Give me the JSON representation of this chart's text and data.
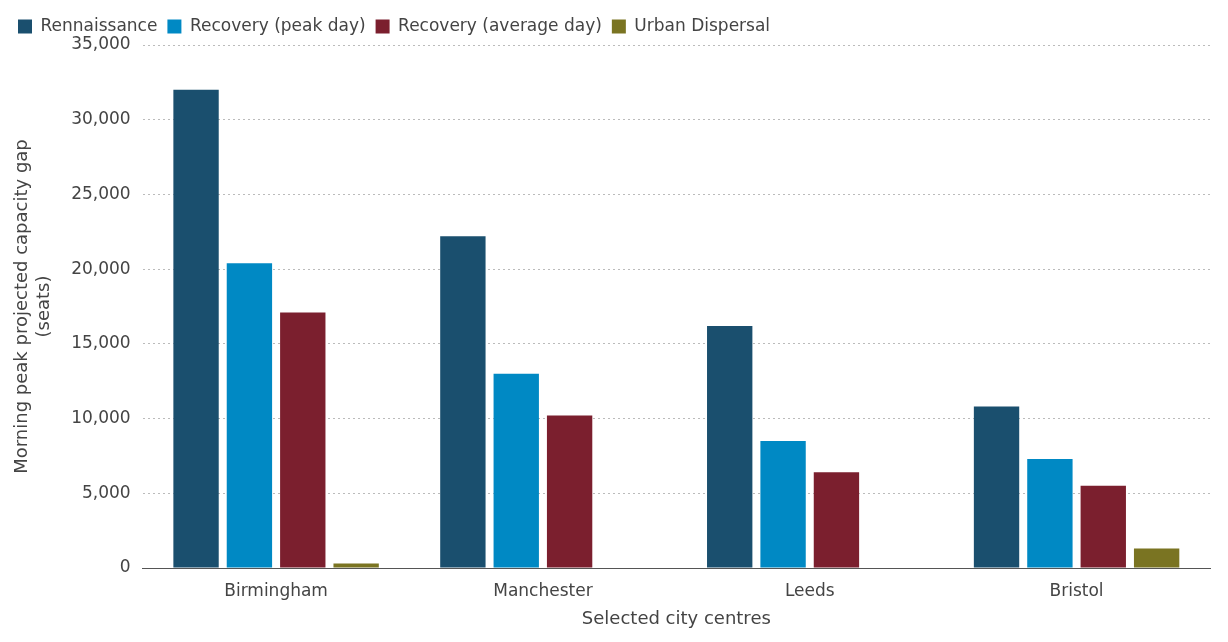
{
  "chart_data": {
    "type": "bar",
    "categories": [
      "Birmingham",
      "Manchester",
      "Leeds",
      "Bristol"
    ],
    "xlabel": "Selected city centres",
    "ylabel": "Morning peak projected capacity gap (seats)",
    "series": [
      {
        "name": "Rennaissance",
        "color": "#1a4f6e",
        "values": [
          32000,
          22200,
          16200,
          10800
        ]
      },
      {
        "name": "Recovery (peak day)",
        "color": "#0089c4",
        "values": [
          20400,
          13000,
          8500,
          7300
        ]
      },
      {
        "name": "Recovery (average day)",
        "color": "#7b1f2e",
        "values": [
          17100,
          10200,
          6400,
          5500
        ]
      },
      {
        "name": "Urban Dispersal",
        "color": "#7a7422",
        "values": [
          300,
          0,
          0,
          1300
        ]
      }
    ],
    "ylim": [
      0,
      35000
    ],
    "yticks": [
      0,
      {
        "value": 5000,
        "label": "5,000"
      },
      {
        "value": 10000,
        "label": "10,000"
      },
      {
        "value": 15000,
        "label": "15,000"
      },
      {
        "value": 20000,
        "label": "20,000"
      },
      {
        "value": 25000,
        "label": "25,000"
      },
      {
        "value": 30000,
        "label": "30,000"
      },
      {
        "value": 35000,
        "label": "35,000"
      }
    ],
    "grid": "y",
    "legend": "top left"
  }
}
